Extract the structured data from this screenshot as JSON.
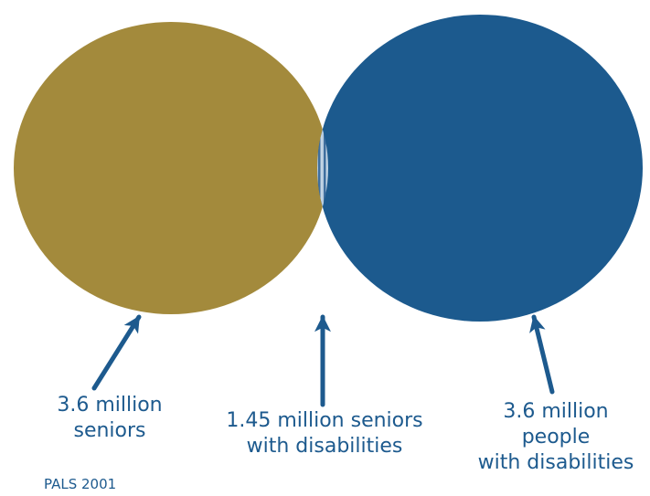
{
  "diagram": {
    "type": "venn",
    "colors": {
      "seniors": "#a38a3c",
      "disabilities": "#1c5a8e",
      "overlap_base": "#b8cde0",
      "overlap_stripe": "#3f6f9f",
      "text": "#1d5a8e"
    },
    "sets": [
      {
        "key": "seniors",
        "lines": [
          "3.6 million",
          "seniors"
        ]
      },
      {
        "key": "disabilities",
        "lines": [
          "3.6 million",
          "people",
          "with disabilities"
        ]
      }
    ],
    "intersection": {
      "lines": [
        "1.45 million seniors",
        "with disabilities"
      ]
    },
    "source": "PALS 2001"
  }
}
